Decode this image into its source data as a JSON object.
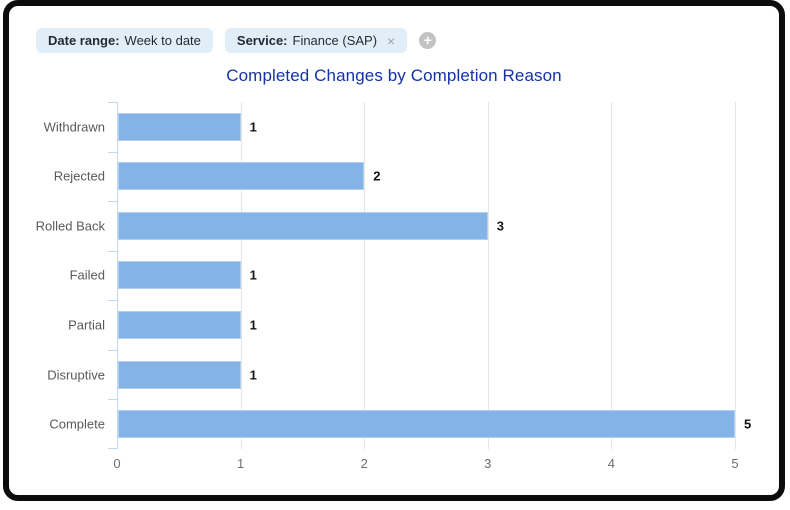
{
  "window": {
    "background": "#ffffff",
    "frame_color": "#0c0c0c"
  },
  "filters": [
    {
      "label": "Date range:",
      "value": "Week to date"
    },
    {
      "label": "Service:",
      "value": "Finance (SAP)",
      "close_glyph": "×"
    }
  ],
  "add_filter": {
    "glyph": "+"
  },
  "chart_data": {
    "type": "bar",
    "orientation": "horizontal",
    "title": "Completed Changes by Completion Reason",
    "title_color": "#1433a4",
    "categories": [
      "Withdrawn",
      "Rejected",
      "Rolled Back",
      "Failed",
      "Partial",
      "Disruptive",
      "Complete"
    ],
    "values": [
      1,
      2,
      3,
      1,
      1,
      1,
      5
    ],
    "xticks": [
      0,
      1,
      2,
      3,
      4,
      5
    ],
    "xlim": [
      0,
      5
    ],
    "xlabel": "",
    "ylabel": "",
    "grid": true,
    "legend": false,
    "value_labels": true,
    "bar_color": "#84b3e8",
    "gridline_color": "#e4e4e4",
    "axis_color": "#c3d7ea"
  }
}
